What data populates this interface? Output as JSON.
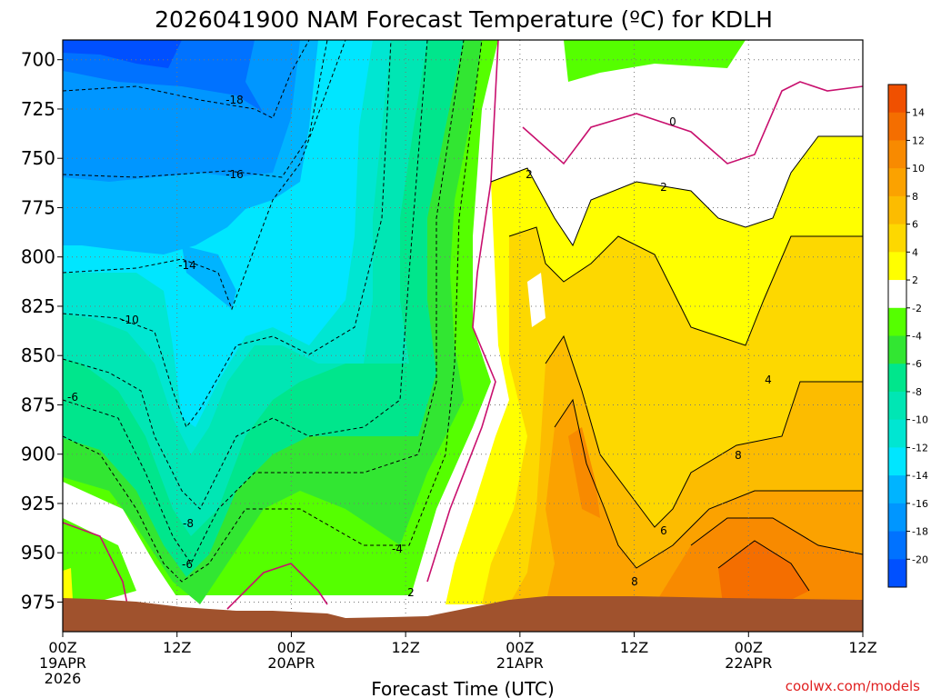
{
  "chart_data": {
    "type": "heatmap",
    "title": "2026041900 NAM Forecast Temperature (ºC) for KDLH",
    "xlabel": "Forecast Time (UTC)",
    "credit": "coolwx.com/models",
    "x_ticks": [
      {
        "hours": 0,
        "line1": "00Z",
        "line2": "19APR",
        "line3": "2026"
      },
      {
        "hours": 12,
        "line1": "12Z",
        "line2": "",
        "line3": ""
      },
      {
        "hours": 24,
        "line1": "00Z",
        "line2": "20APR",
        "line3": ""
      },
      {
        "hours": 36,
        "line1": "12Z",
        "line2": "",
        "line3": ""
      },
      {
        "hours": 48,
        "line1": "00Z",
        "line2": "21APR",
        "line3": ""
      },
      {
        "hours": 60,
        "line1": "12Z",
        "line2": "",
        "line3": ""
      },
      {
        "hours": 72,
        "line1": "00Z",
        "line2": "22APR",
        "line3": ""
      },
      {
        "hours": 84,
        "line1": "12Z",
        "line2": "",
        "line3": ""
      }
    ],
    "xlim": [
      0,
      84
    ],
    "ylim_hpa": [
      990,
      690
    ],
    "y_ticks": [
      700,
      725,
      750,
      775,
      800,
      825,
      850,
      875,
      900,
      925,
      950,
      975
    ],
    "colorbar": {
      "labels": [
        14,
        12,
        10,
        8,
        6,
        4,
        2,
        -2,
        -4,
        -6,
        -8,
        -10,
        -12,
        -14,
        -16,
        -18,
        -20
      ],
      "bins": [
        {
          "range": ">=14",
          "color": "#f05000"
        },
        {
          "range": "12 to 14",
          "color": "#f46e00"
        },
        {
          "range": "10 to 12",
          "color": "#f88a00"
        },
        {
          "range": "8 to 10",
          "color": "#fba200"
        },
        {
          "range": "6 to 8",
          "color": "#fcbc00"
        },
        {
          "range": "4 to 6",
          "color": "#fdd800"
        },
        {
          "range": "2 to 4",
          "color": "#ffff00"
        },
        {
          "range": "-2 to 2",
          "color": "#ffffff"
        },
        {
          "range": "-4 to -2",
          "color": "#55ff00"
        },
        {
          "range": "-6 to -4",
          "color": "#32e632"
        },
        {
          "range": "-8 to -6",
          "color": "#00e68c"
        },
        {
          "range": "-10 to -8",
          "color": "#00e6b4"
        },
        {
          "range": "-12 to -10",
          "color": "#00e6d2"
        },
        {
          "range": "-14 to -12",
          "color": "#00e6ff"
        },
        {
          "range": "-16 to -14",
          "color": "#00b4ff"
        },
        {
          "range": "-18 to -16",
          "color": "#0096ff"
        },
        {
          "range": "-20 to -18",
          "color": "#0072ff"
        },
        {
          "range": "<-20",
          "color": "#0050ff"
        }
      ]
    },
    "contour_labels": [
      "-18",
      "-16",
      "-14",
      "-10",
      "-6",
      "-8",
      "-6",
      "-4",
      "2",
      "2",
      "0",
      "2",
      "4",
      "8",
      "6",
      "8"
    ],
    "colors": {
      "ground": "#a0522d",
      "zero_line": "#c8106e"
    }
  }
}
